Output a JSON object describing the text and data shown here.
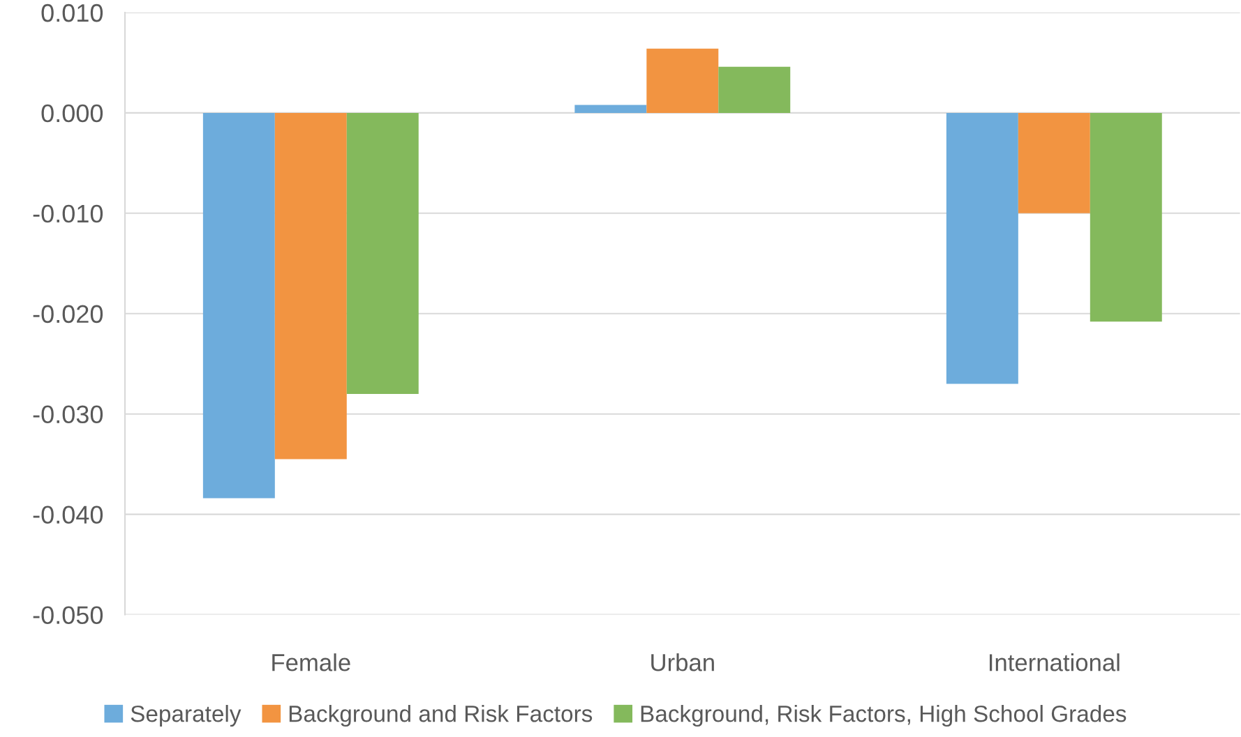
{
  "chart_data": {
    "type": "bar",
    "categories": [
      "Female",
      "Urban",
      "International"
    ],
    "series": [
      {
        "name": "Separately",
        "color": "#6dacdc",
        "values": [
          -0.0384,
          0.0008,
          -0.027
        ]
      },
      {
        "name": "Background and Risk Factors",
        "color": "#f29441",
        "values": [
          -0.0345,
          0.0064,
          -0.01
        ]
      },
      {
        "name": "Background, Risk Factors, High School Grades",
        "color": "#84b95c",
        "values": [
          -0.028,
          0.0046,
          -0.0208
        ]
      }
    ],
    "ylim": [
      -0.05,
      0.01
    ],
    "yticks": [
      {
        "value": -0.05,
        "label": "-0.050"
      },
      {
        "value": -0.04,
        "label": "-0.040"
      },
      {
        "value": -0.03,
        "label": "-0.030"
      },
      {
        "value": -0.02,
        "label": "-0.020"
      },
      {
        "value": -0.01,
        "label": "-0.010"
      },
      {
        "value": 0.0,
        "label": "0.000"
      },
      {
        "value": 0.01,
        "label": "0.010"
      }
    ],
    "grid": "y",
    "legend": "bottom"
  }
}
